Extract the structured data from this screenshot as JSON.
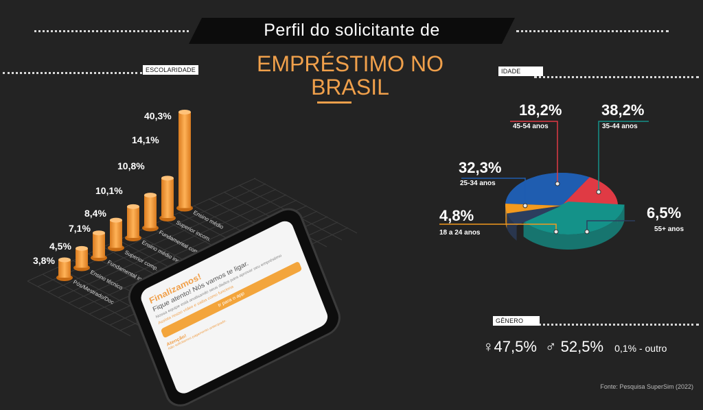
{
  "title": {
    "line1": "Perfil do solicitante de",
    "line2": "EMPRÉSTIMO NO BRASIL"
  },
  "sections": {
    "education": "ESCOLARIDADE",
    "age": "IDADE",
    "gender": "GÊNERO"
  },
  "colors": {
    "accent": "#f0a04b",
    "bar": "#f39a37",
    "age_colors": [
      "#1f5db0",
      "#e03a44",
      "#149289",
      "#2c3e5e",
      "#f39a1e"
    ]
  },
  "chart_data": [
    {
      "type": "bar",
      "categories": [
        "Pós/Mestrado/Doc",
        "Ensino técnico",
        "Fundamental inc.",
        "Superior comp.",
        "Ensino médio inc.",
        "Fundamental com.",
        "Superior incom.",
        "Ensino médio"
      ],
      "values": [
        3.8,
        4.5,
        7.1,
        8.4,
        10.1,
        10.8,
        14.1,
        40.3
      ],
      "labels": [
        "3,8%",
        "4,5%",
        "7,1%",
        "8,4%",
        "10,1%",
        "10,8%",
        "14,1%",
        "40,3%"
      ]
    },
    {
      "type": "pie",
      "slices": [
        {
          "label": "25-34 anos",
          "value": 32.3,
          "display": "32,3%"
        },
        {
          "label": "45-54 anos",
          "value": 18.2,
          "display": "18,2%"
        },
        {
          "label": "35-44 anos",
          "value": 38.2,
          "display": "38,2%"
        },
        {
          "label": "55+ anos",
          "value": 6.5,
          "display": "6,5%"
        },
        {
          "label": "18 a 24 anos",
          "value": 4.8,
          "display": "4,8%"
        }
      ]
    }
  ],
  "gender": {
    "female": "47,5%",
    "male": "52,5%",
    "other": "0,1% - outro"
  },
  "phone": {
    "heading": "Finalizamos!",
    "subheading": "Fique atento! Nós vamos te ligar.",
    "body": "Nossa equipe está analisando seus dados para aprovar seu empréstimo",
    "note": "Assista nosso vídeo e saiba como funciona",
    "button": "Ir para o app",
    "warning_title": "Atenção!",
    "warning_text": "Não solicitamos pagamento antecipado."
  },
  "source": "Fonte: Pesquisa SuperSim (2022)"
}
